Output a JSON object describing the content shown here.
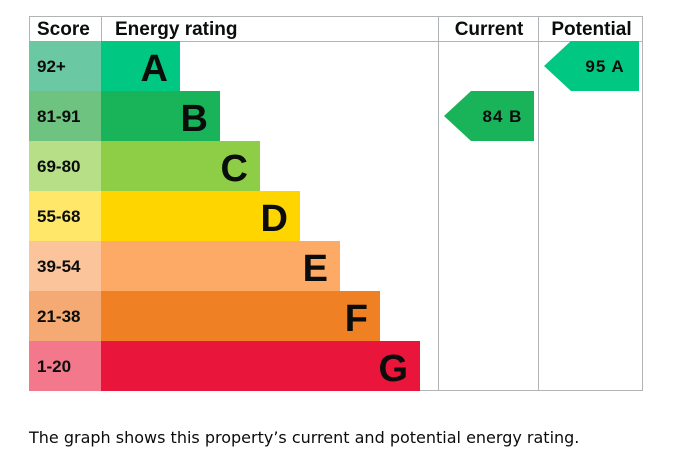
{
  "chart_data": {
    "type": "bar",
    "title": "",
    "headers": {
      "score": "Score",
      "rating": "Energy rating",
      "current": "Current",
      "potential": "Potential"
    },
    "bands": [
      {
        "score": "92+",
        "letter": "A",
        "score_color": "#6ac8a3",
        "color": "#00c781"
      },
      {
        "score": "81-91",
        "letter": "B",
        "score_color": "#6dc37f",
        "color": "#19b459"
      },
      {
        "score": "69-80",
        "letter": "C",
        "score_color": "#b6df88",
        "color": "#8dce46"
      },
      {
        "score": "55-68",
        "letter": "D",
        "score_color": "#ffe76a",
        "color": "#ffd500"
      },
      {
        "score": "39-54",
        "letter": "E",
        "score_color": "#fcc49a",
        "color": "#fcaa65"
      },
      {
        "score": "21-38",
        "letter": "F",
        "score_color": "#f4aa72",
        "color": "#ef8023"
      },
      {
        "score": "1-20",
        "letter": "G",
        "score_color": "#f3788b",
        "color": "#e9153b"
      }
    ],
    "current": {
      "value": 84,
      "letter": "B",
      "label": "84 B",
      "color": "#19b459"
    },
    "potential": {
      "value": 95,
      "letter": "A",
      "label": "95 A",
      "color": "#00c781"
    }
  },
  "caption": "The graph shows this property’s current and potential energy rating."
}
